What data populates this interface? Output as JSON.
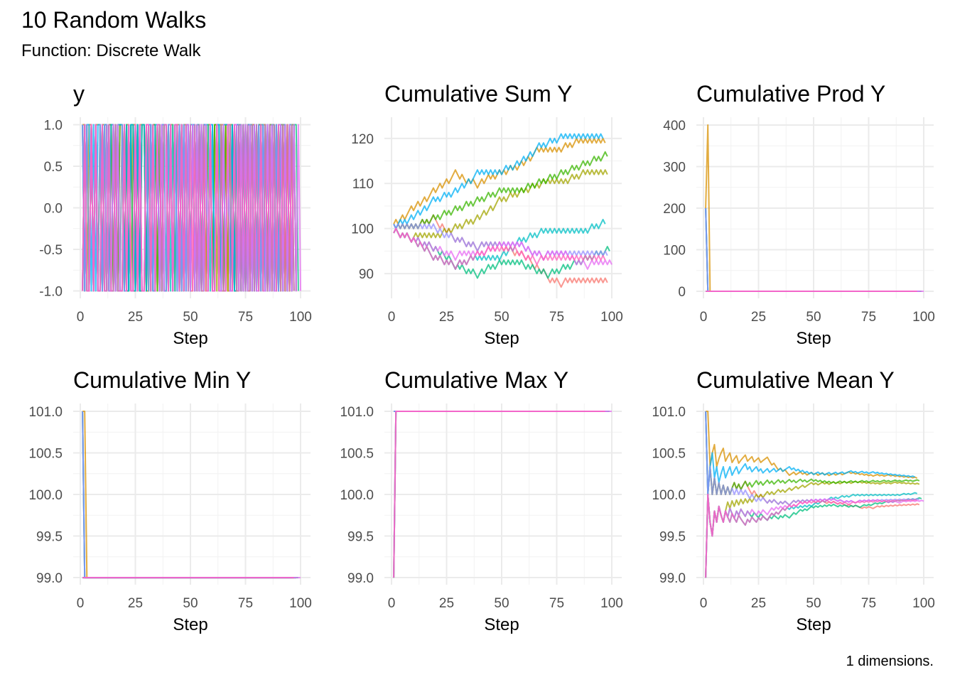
{
  "title": "10 Random Walks",
  "subtitle": "Function: Discrete Walk",
  "caption": "1 dimensions.",
  "chart_data": {
    "type": "line",
    "layout": "facets 2x3",
    "grid": true,
    "legend": "none",
    "xlabel": "Step",
    "x_range": [
      1,
      100
    ],
    "x_ticks": [
      0,
      25,
      50,
      75,
      100
    ],
    "colors": [
      "#F8766D",
      "#D89000",
      "#A3A500",
      "#39B600",
      "#00BF7D",
      "#00BFC4",
      "#00B0F6",
      "#9590FF",
      "#E76BF3",
      "#FF62BC"
    ],
    "steps_encoding": "+ = +1, - = -1",
    "series_steps": [
      "+-+-+-+-+-+-++-+-++---+--+---+-+--+-+--++-+-+-+-+--+-+--+-+--+---+--+---+-+--++-+-+-+-+-+-+-+-+-+-",
      "++-++-+++-++-++-+++-++-++-+++--+--+-+--++-++-+-++-+-++-+-++-++-+++-+-+-+-+-+-++-+-++-+-+-+-+-+-+-",
      "-+--+-+--++-+-+-+-+-+-++-+-++-+-++-+-++-++-++-+++-+-++-+-++-+-++-+-++-+-+-+-+-+-++-+-++-+-+-+-+-+-",
      "+-+-+-+-+-+-++-+-++-+-++-+-++-+-++-+-++-+-++-+-++-+-+-+-+-+-++-+-++-+-++-+-++-+-++-+-++-+-++-+-++-",
      "-+--+-+--+-+--+-+--+--+--+---+-+--+-+--++-++-+-++-+-+-+-+-+--+-+--+-+--++-+-++-+-++-+-++-+-++-+-++-",
      "-+--+-+--+--+--+---+-+--+-+--++-+-++-+-+-+-+-+-+-++-++-+++-+-++-+-++-+-+-+-+-+-+-+-+-+-+-++-+-++-",
      "+-++-+-++-++-++-+++-+-++-+-++-++-++-+++-+-+-+-+-+-++-+-++-++-++-+++-+-++-+-++-+-+-+-+-+-+-+-+-+-",
      "+-+-+-+-+-+-+-+-+-+--+--+-+--+-+--+-+--++-+-+-+-+-+-+-+-+-+--+--+-+--++-+-+-+-+-+-+-+-+-+-+-+-+-+-",
      "-+--+-+--+-+--+-+--+-+--+-+--++-+-+-+-+-+-++-+-++-+-+-+-+-+--+--+-+--++-+-+-+-+--+--+-+--++-+-+-+-+-",
      "-+--+-+--+--+--+---+-+--+-+--++-+-++-++-+-++-+-+-+-+-+-+--+--+-+--++-+-+-+-+-+-+-+-+-+-+-+-+-+-+-"
    ],
    "panels": [
      {
        "title": "y",
        "ylim": [
          -1.09,
          1.09
        ],
        "y_ticks": [
          -1.0,
          -0.5,
          0.0,
          0.5,
          1.0
        ],
        "y_tick_labels": [
          "-1.0",
          "-0.5",
          "0.0",
          "0.5",
          "1.0"
        ]
      },
      {
        "title": "Cumulative Sum Y",
        "ylim": [
          84.5,
          124.7
        ],
        "y_ticks": [
          90,
          100,
          110,
          120
        ],
        "y_tick_labels": [
          "90",
          "100",
          "110",
          "120"
        ]
      },
      {
        "title": "Cumulative Prod Y",
        "ylim": [
          -17.1,
          418.8
        ],
        "y_ticks": [
          0,
          100,
          200,
          300,
          400
        ],
        "y_tick_labels": [
          "0",
          "100",
          "200",
          "300",
          "400"
        ]
      },
      {
        "title": "Cumulative Min Y",
        "ylim": [
          98.915,
          101.094
        ],
        "y_ticks": [
          99,
          99.5,
          100,
          100.5,
          101
        ],
        "y_tick_labels": [
          "99.0",
          "99.5",
          "100.0",
          "100.5",
          "101.0"
        ]
      },
      {
        "title": "Cumulative Max Y",
        "ylim": [
          98.915,
          101.094
        ],
        "y_ticks": [
          99,
          99.5,
          100,
          100.5,
          101
        ],
        "y_tick_labels": [
          "99.0",
          "99.5",
          "100.0",
          "100.5",
          "101.0"
        ]
      },
      {
        "title": "Cumulative Mean Y",
        "ylim": [
          98.915,
          101.094
        ],
        "y_ticks": [
          99,
          99.5,
          100,
          100.5,
          101
        ],
        "y_tick_labels": [
          "99.0",
          "99.5",
          "100.0",
          "100.5",
          "101.0"
        ]
      }
    ]
  }
}
